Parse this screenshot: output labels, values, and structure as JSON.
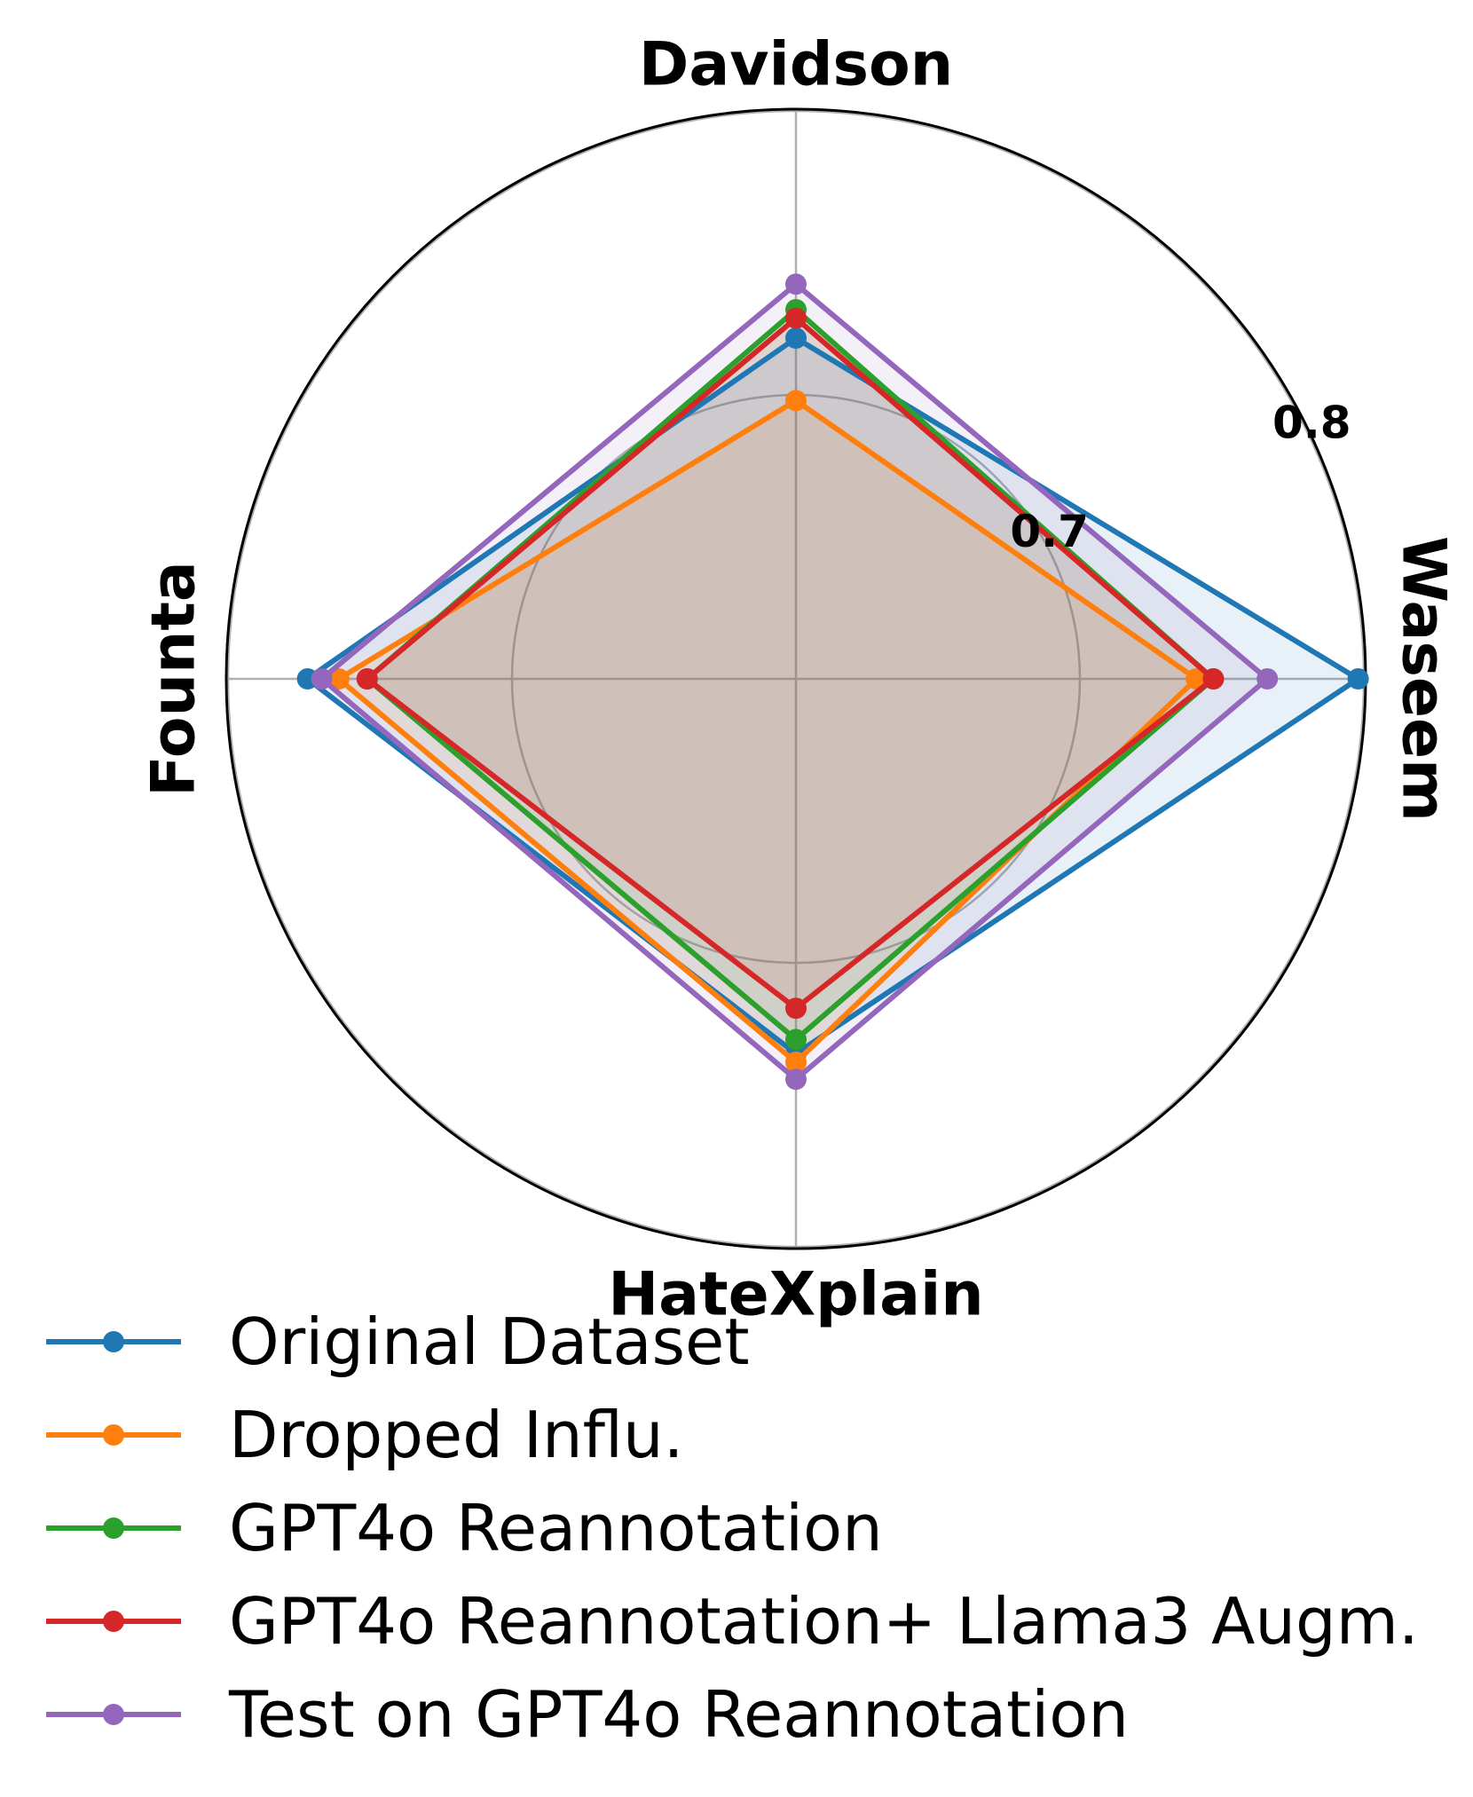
{
  "chart_data": {
    "type": "radar",
    "axes": [
      "Davidson",
      "Waseem",
      "HateXplain",
      "Founta"
    ],
    "rticks": [
      0.7,
      0.8
    ],
    "rlim": [
      0.6,
      0.8
    ],
    "series": [
      {
        "name": "Original Dataset",
        "color": "#1f77b4",
        "values": [
          0.72,
          0.798,
          0.732,
          0.772
        ]
      },
      {
        "name": "Dropped Influ.",
        "color": "#ff7f0e",
        "values": [
          0.698,
          0.741,
          0.735,
          0.761
        ]
      },
      {
        "name": "GPT4o Reannotation",
        "color": "#2ca02c",
        "values": [
          0.73,
          0.747,
          0.727,
          0.751
        ]
      },
      {
        "name": "GPT4o Reannotation+ Llama3 Augm.",
        "color": "#d62728",
        "values": [
          0.727,
          0.747,
          0.716,
          0.751
        ]
      },
      {
        "name": "Test on GPT4o Reannotation",
        "color": "#9467bd",
        "values": [
          0.739,
          0.766,
          0.741,
          0.767
        ]
      }
    ],
    "legend": "bottom"
  }
}
